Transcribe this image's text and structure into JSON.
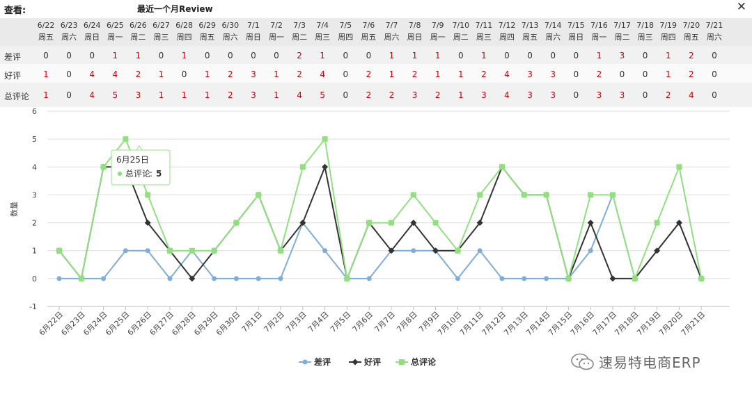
{
  "header": {
    "view_label": "查看:",
    "report_title": "最近一个月Review",
    "close_label": "✕"
  },
  "table": {
    "dates": [
      "6/22",
      "6/23",
      "6/24",
      "6/25",
      "6/26",
      "6/27",
      "6/28",
      "6/29",
      "6/30",
      "7/1",
      "7/2",
      "7/3",
      "7/4",
      "7/5",
      "7/6",
      "7/7",
      "7/8",
      "7/9",
      "7/10",
      "7/11",
      "7/12",
      "7/13",
      "7/14",
      "7/15",
      "7/16",
      "7/17",
      "7/18",
      "7/19",
      "7/20",
      "7/21"
    ],
    "weekdays": [
      "周五",
      "周六",
      "周日",
      "周一",
      "周二",
      "周三",
      "周四",
      "周五",
      "周六",
      "周日",
      "周一",
      "周二",
      "周三",
      "周四",
      "周五",
      "周六",
      "周日",
      "周一",
      "周二",
      "周三",
      "周四",
      "周五",
      "周六",
      "周日",
      "周一",
      "周二",
      "周三",
      "周四",
      "周五",
      "周六"
    ],
    "rows": [
      {
        "label": "差评",
        "values": [
          0,
          0,
          0,
          1,
          1,
          0,
          1,
          0,
          0,
          0,
          0,
          2,
          1,
          0,
          0,
          1,
          1,
          1,
          0,
          1,
          0,
          0,
          0,
          0,
          1,
          3,
          0,
          1,
          2,
          0
        ]
      },
      {
        "label": "好评",
        "values": [
          1,
          0,
          4,
          4,
          2,
          1,
          0,
          1,
          2,
          3,
          1,
          2,
          4,
          0,
          2,
          1,
          2,
          1,
          1,
          2,
          4,
          3,
          3,
          0,
          2,
          0,
          0,
          1,
          2,
          0
        ]
      },
      {
        "label": "总评论",
        "values": [
          1,
          0,
          4,
          5,
          3,
          1,
          1,
          1,
          2,
          3,
          1,
          4,
          5,
          0,
          2,
          2,
          3,
          2,
          1,
          3,
          4,
          3,
          3,
          0,
          3,
          3,
          0,
          2,
          4,
          0
        ]
      }
    ]
  },
  "chart_data": {
    "type": "line",
    "categories": [
      "6月22日",
      "6月23日",
      "6月24日",
      "6月25日",
      "6月26日",
      "6月27日",
      "6月28日",
      "6月29日",
      "6月30日",
      "7月1日",
      "7月2日",
      "7月3日",
      "7月4日",
      "7月5日",
      "7月6日",
      "7月7日",
      "7月8日",
      "7月9日",
      "7月10日",
      "7月11日",
      "7月12日",
      "7月13日",
      "7月14日",
      "7月15日",
      "7月16日",
      "7月17日",
      "7月18日",
      "7月19日",
      "7月20日",
      "7月21日"
    ],
    "series": [
      {
        "name": "差评",
        "color": "#7fadd8",
        "marker": "circle",
        "values": [
          0,
          0,
          0,
          1,
          1,
          0,
          1,
          0,
          0,
          0,
          0,
          2,
          1,
          0,
          0,
          1,
          1,
          1,
          0,
          1,
          0,
          0,
          0,
          0,
          1,
          3,
          0,
          1,
          2,
          0
        ]
      },
      {
        "name": "好评",
        "color": "#333333",
        "marker": "diamond",
        "values": [
          1,
          0,
          4,
          4,
          2,
          1,
          0,
          1,
          2,
          3,
          1,
          2,
          4,
          0,
          2,
          1,
          2,
          1,
          1,
          2,
          4,
          3,
          3,
          0,
          2,
          0,
          0,
          1,
          2,
          0
        ]
      },
      {
        "name": "总评论",
        "color": "#90e080",
        "marker": "square",
        "values": [
          1,
          0,
          4,
          5,
          3,
          1,
          1,
          1,
          2,
          3,
          1,
          4,
          5,
          0,
          2,
          2,
          3,
          2,
          1,
          3,
          4,
          3,
          3,
          0,
          3,
          3,
          0,
          2,
          4,
          0
        ]
      }
    ],
    "ylabel": "数量",
    "ylim": [
      -1,
      6
    ],
    "yticks": [
      -1,
      0,
      1,
      2,
      3,
      4,
      5,
      6
    ],
    "grid": true,
    "legend_position": "bottom-center",
    "tooltip": {
      "title": "6月25日",
      "series": "总评论",
      "value": "5"
    }
  },
  "colors": {
    "negative_value": "#cc0000",
    "zero_value": "#333333"
  },
  "watermark": {
    "text": "速易特电商ERP"
  }
}
